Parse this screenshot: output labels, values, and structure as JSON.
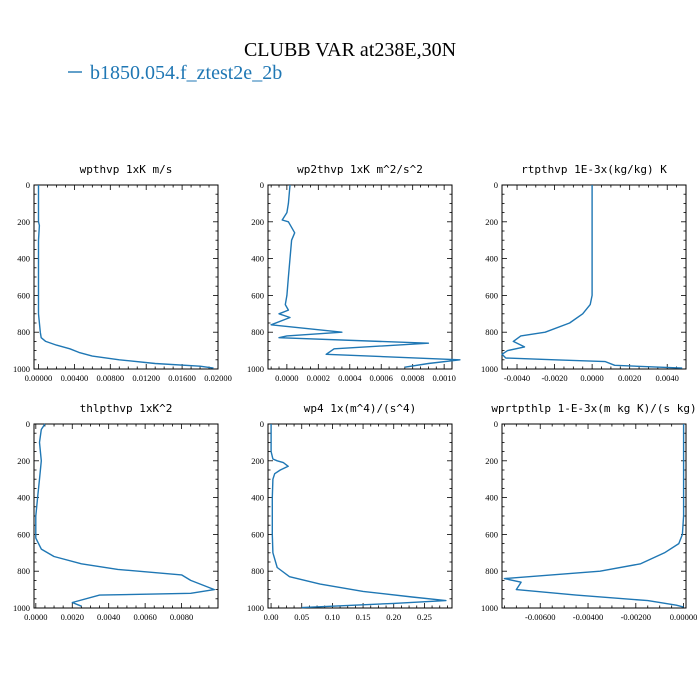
{
  "figure": {
    "title": "CLUBB VAR at238E,30N",
    "legend": [
      {
        "label": "b1850.054.f_ztest2e_2b",
        "color": "#1f77b4"
      }
    ]
  },
  "chart_data": [
    {
      "type": "line",
      "title": "wpthvp   1xK m/s",
      "xlim": [
        -0.0005,
        0.02
      ],
      "ylim": [
        1000,
        0
      ],
      "xticks": [
        0,
        0.004,
        0.008,
        0.012,
        0.016,
        0.02
      ],
      "xtick_labels": [
        "0.00000",
        "0.00400",
        "0.00800",
        "0.01200",
        "0.01600",
        "0.02000"
      ],
      "yticks": [
        0,
        200,
        400,
        600,
        800,
        1000
      ],
      "ytick_labels": [
        "0",
        "200",
        "400",
        "600",
        "800",
        "1000"
      ],
      "series": [
        {
          "color": "#1f77b4",
          "x": [
            0.0,
            0.0,
            0.0,
            0.0001,
            0.0,
            0.0,
            0.0,
            0.0002,
            0.0003,
            0.0008,
            0.002,
            0.0035,
            0.0045,
            0.006,
            0.009,
            0.013,
            0.018,
            0.0195
          ],
          "y": [
            0,
            100,
            200,
            220,
            300,
            500,
            700,
            800,
            830,
            850,
            870,
            890,
            910,
            930,
            950,
            970,
            985,
            995
          ]
        }
      ]
    },
    {
      "type": "line",
      "title": "wp2thvp   1xK m^2/s^2",
      "xlim": [
        -0.00012,
        0.00105
      ],
      "ylim": [
        1000,
        0
      ],
      "xticks": [
        0,
        0.0002,
        0.0004,
        0.0006,
        0.0008,
        0.001
      ],
      "xtick_labels": [
        "0.0000",
        "0.0002",
        "0.0004",
        "0.0006",
        "0.0008",
        "0.0010"
      ],
      "yticks": [
        0,
        200,
        400,
        600,
        800,
        1000
      ],
      "ytick_labels": [
        "0",
        "200",
        "400",
        "600",
        "800",
        "1000"
      ],
      "series": [
        {
          "color": "#1f77b4",
          "x": [
            2e-05,
            1e-05,
            0.0,
            -3e-05,
            1e-05,
            5e-05,
            3e-05,
            2e-05,
            1e-05,
            0.0,
            -1e-05,
            1e-05,
            -5e-05,
            2e-05,
            -0.0001,
            0.00035,
            0.0,
            -5e-05,
            0.0009,
            0.0003,
            0.00025,
            0.0011,
            0.0009,
            0.00075
          ],
          "y": [
            0,
            100,
            150,
            190,
            200,
            260,
            300,
            400,
            500,
            600,
            650,
            680,
            700,
            720,
            760,
            800,
            820,
            830,
            860,
            890,
            920,
            950,
            970,
            990
          ]
        }
      ]
    },
    {
      "type": "line",
      "title": "rtpthvp   1E-3x(kg/kg) K",
      "xlim": [
        -0.0048,
        0.005
      ],
      "ylim": [
        1000,
        0
      ],
      "xticks": [
        -0.004,
        -0.002,
        0,
        0.002,
        0.004
      ],
      "xtick_labels": [
        "-0.0040",
        "-0.0020",
        "0.0000",
        "0.0020",
        "0.0040"
      ],
      "yticks": [
        0,
        200,
        400,
        600,
        800,
        1000
      ],
      "ytick_labels": [
        "0",
        "200",
        "400",
        "600",
        "800",
        "1000"
      ],
      "series": [
        {
          "color": "#1f77b4",
          "x": [
            0.0,
            0.0,
            0.0,
            0.0,
            -0.0001,
            -0.0005,
            -0.0012,
            -0.0025,
            -0.0038,
            -0.0042,
            -0.0036,
            -0.0045,
            -0.0048,
            -0.0046,
            -0.002,
            0.0007,
            0.0012,
            0.0048
          ],
          "y": [
            0,
            200,
            400,
            600,
            650,
            700,
            750,
            800,
            820,
            850,
            880,
            900,
            920,
            940,
            950,
            960,
            980,
            995
          ]
        }
      ]
    },
    {
      "type": "line",
      "title": "thlpthvp   1xK^2",
      "xlim": [
        -0.0001,
        0.01
      ],
      "ylim": [
        1000,
        0
      ],
      "xticks": [
        0,
        0.002,
        0.004,
        0.006,
        0.008
      ],
      "xtick_labels": [
        "0.0000",
        "0.0020",
        "0.0040",
        "0.0060",
        "0.0080"
      ],
      "yticks": [
        0,
        200,
        400,
        600,
        800,
        1000
      ],
      "ytick_labels": [
        "0",
        "200",
        "400",
        "600",
        "800",
        "1000"
      ],
      "series": [
        {
          "color": "#1f77b4",
          "x": [
            0.0005,
            0.0003,
            0.0002,
            0.0003,
            0.0002,
            0.0001,
            0.0,
            0.0,
            0.0003,
            0.001,
            0.0025,
            0.0045,
            0.008,
            0.0085,
            0.0098,
            0.0085,
            0.0035,
            0.002,
            0.0025
          ],
          "y": [
            0,
            30,
            100,
            200,
            300,
            400,
            500,
            620,
            680,
            720,
            760,
            790,
            820,
            850,
            900,
            920,
            930,
            970,
            990
          ]
        }
      ]
    },
    {
      "type": "line",
      "title": "wp4   1x(m^4)/(s^4)",
      "xlim": [
        -0.005,
        0.295
      ],
      "ylim": [
        1000,
        0
      ],
      "xticks": [
        0,
        0.05,
        0.1,
        0.15,
        0.2,
        0.25
      ],
      "xtick_labels": [
        "0.00",
        "0.05",
        "0.10",
        "0.15",
        "0.20",
        "0.25"
      ],
      "yticks": [
        0,
        200,
        400,
        600,
        800,
        1000
      ],
      "ytick_labels": [
        "0",
        "200",
        "400",
        "600",
        "800",
        "1000"
      ],
      "series": [
        {
          "color": "#1f77b4",
          "x": [
            0.0,
            0.0,
            0.003,
            0.01,
            0.02,
            0.028,
            0.015,
            0.006,
            0.003,
            0.002,
            0.002,
            0.003,
            0.01,
            0.03,
            0.08,
            0.15,
            0.23,
            0.285,
            0.2,
            0.1,
            0.05
          ],
          "y": [
            0,
            150,
            190,
            200,
            210,
            230,
            250,
            270,
            300,
            400,
            600,
            700,
            780,
            830,
            870,
            910,
            940,
            960,
            975,
            990,
            998
          ]
        }
      ]
    },
    {
      "type": "line",
      "title": "wprtpthlp   1-E-3x(m kg K)/(s kg)",
      "xlim": [
        -0.0076,
        0.0001
      ],
      "ylim": [
        1000,
        0
      ],
      "xticks": [
        -0.006,
        -0.004,
        -0.002,
        0
      ],
      "xtick_labels": [
        "-0.00600",
        "-0.00400",
        "-0.00200",
        "0.00000"
      ],
      "yticks": [
        0,
        200,
        400,
        600,
        800,
        1000
      ],
      "ytick_labels": [
        "0",
        "200",
        "400",
        "600",
        "800",
        "1000"
      ],
      "series": [
        {
          "color": "#1f77b4",
          "x": [
            0.0,
            0.0,
            0.0,
            -5e-05,
            -0.0002,
            -0.0008,
            -0.0018,
            -0.0035,
            -0.0075,
            -0.0068,
            -0.007,
            -0.0045,
            -0.0015,
            -0.0003,
            0.0
          ],
          "y": [
            0,
            200,
            500,
            600,
            650,
            700,
            760,
            800,
            840,
            860,
            900,
            930,
            960,
            985,
            995
          ]
        }
      ]
    }
  ]
}
